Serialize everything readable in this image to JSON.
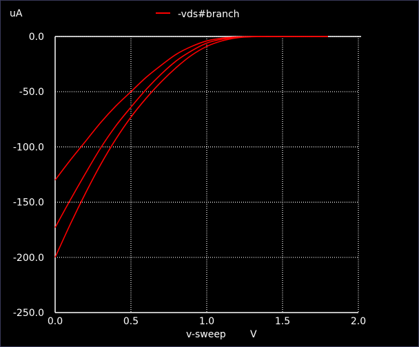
{
  "chart_data": {
    "type": "line",
    "title": "",
    "xlabel": "v-sweep",
    "xunit": "V",
    "ylabel": "uA",
    "xlim": [
      0.0,
      2.0
    ],
    "ylim": [
      -250.0,
      0.0
    ],
    "x_ticks": [
      "0.0",
      "0.5",
      "1.0",
      "1.5",
      "2.0"
    ],
    "x_tick_values": [
      0.0,
      0.5,
      1.0,
      1.5,
      2.0
    ],
    "y_ticks": [
      "0.0",
      "-50.0",
      "-100.0",
      "-150.0",
      "-200.0",
      "-250.0"
    ],
    "y_tick_values": [
      0,
      -50,
      -100,
      -150,
      -200,
      -250
    ],
    "grid": true,
    "legend": {
      "label": "-vds#branch",
      "position": "top-center",
      "color": "#ff0000"
    },
    "x_sweep_end": 1.8,
    "series": [
      {
        "color": "#ff0000",
        "x": [
          0.0,
          0.1,
          0.2,
          0.3,
          0.4,
          0.5,
          0.6,
          0.7,
          0.8,
          0.9,
          1.0,
          1.1,
          1.2,
          1.3,
          1.4,
          1.5,
          1.6,
          1.7,
          1.8
        ],
        "y": [
          -130,
          -112,
          -95,
          -78,
          -63,
          -50,
          -37,
          -26,
          -16,
          -9,
          -4,
          -1.5,
          -0.4,
          0,
          0,
          0,
          0,
          0,
          0
        ]
      },
      {
        "color": "#ff0000",
        "x": [
          0.0,
          0.1,
          0.2,
          0.3,
          0.4,
          0.5,
          0.6,
          0.7,
          0.8,
          0.9,
          1.0,
          1.1,
          1.2,
          1.3,
          1.4,
          1.5,
          1.6,
          1.7,
          1.8
        ],
        "y": [
          -173,
          -148,
          -124,
          -101,
          -81,
          -64,
          -48,
          -34,
          -22,
          -13,
          -6,
          -2.5,
          -0.8,
          -0.1,
          0,
          0,
          0,
          0,
          0
        ]
      },
      {
        "color": "#ff0000",
        "x": [
          0.0,
          0.1,
          0.2,
          0.3,
          0.4,
          0.5,
          0.6,
          0.7,
          0.8,
          0.9,
          1.0,
          1.1,
          1.2,
          1.3,
          1.4,
          1.5,
          1.6,
          1.7,
          1.8
        ],
        "y": [
          -200,
          -170,
          -142,
          -116,
          -93,
          -73,
          -56,
          -41,
          -28,
          -17,
          -9,
          -4,
          -1.2,
          -0.2,
          0,
          0,
          0,
          0,
          0
        ]
      }
    ]
  }
}
